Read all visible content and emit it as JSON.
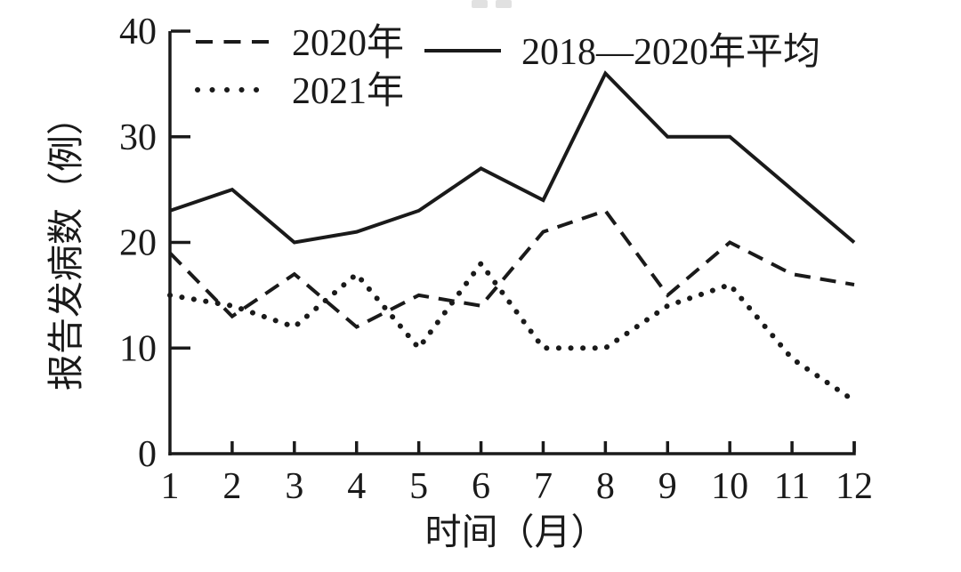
{
  "figure": {
    "background": "#ffffff",
    "ink_color": "#1a1a1a"
  },
  "chart_data": {
    "type": "line",
    "title": "",
    "xlabel": "时间（月）",
    "ylabel": "报告发病数（例）",
    "x": [
      1,
      2,
      3,
      4,
      5,
      6,
      7,
      8,
      9,
      10,
      11,
      12
    ],
    "xlim": [
      1,
      12
    ],
    "ylim": [
      0,
      40
    ],
    "yticks": [
      0,
      10,
      20,
      30,
      40
    ],
    "grid": false,
    "legend_position": "top-left-inside",
    "series": [
      {
        "name": "2020年",
        "style": "dashed",
        "values": [
          19,
          13,
          17,
          12,
          15,
          14,
          21,
          23,
          15,
          20,
          17,
          16
        ]
      },
      {
        "name": "2021年",
        "style": "dotted",
        "values": [
          15,
          14,
          12,
          17,
          10,
          18,
          10,
          10,
          14,
          16,
          9,
          5
        ]
      },
      {
        "name": "2018—2020年平均",
        "style": "solid",
        "values": [
          23,
          25,
          20,
          21,
          23,
          27,
          24,
          36,
          30,
          30,
          25,
          20
        ]
      }
    ]
  }
}
